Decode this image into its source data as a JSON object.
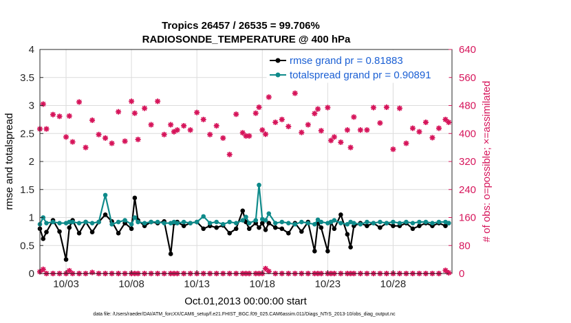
{
  "colors": {
    "rmse": "#000000",
    "spread": "#0e8a8a",
    "obs": "#d6145a",
    "legend_text": "#1a5fd4"
  },
  "chart_data": {
    "type": "line",
    "title": "Tropics 26457 / 26535 = 99.706%",
    "subtitle": "RADIOSONDE_TEMPERATURE @ 400 hPa",
    "xlabel": "Oct.01,2013 00:00:00 start",
    "ylabel": "rmse and totalspread",
    "ylabel_right": "# of obs: o=possible; ×=assimilated",
    "footnote": "data file: /Users/raeder/DAI/ATM_forcXX/CAM6_setup/f.e21.FHIST_BGC.f09_025.CAM6assim.011/Diags_NTrS_2013-10/obs_diag_output.nc",
    "xlim": [
      1.0,
      32.5
    ],
    "ylim": [
      0,
      4
    ],
    "ylim_right": [
      0,
      640
    ],
    "yticks": [
      "0",
      "0.5",
      "1",
      "1.5",
      "2",
      "2.5",
      "3",
      "3.5",
      "4"
    ],
    "yticks_right": [
      "0",
      "80",
      "160",
      "240",
      "320",
      "400",
      "480",
      "560",
      "640"
    ],
    "xticks": [
      {
        "day": 3,
        "label": "10/03"
      },
      {
        "day": 8,
        "label": "10/08"
      },
      {
        "day": 13,
        "label": "10/13"
      },
      {
        "day": 18,
        "label": "10/18"
      },
      {
        "day": 23,
        "label": "10/23"
      },
      {
        "day": 28,
        "label": "10/28"
      }
    ],
    "legend": {
      "placement": "top-right",
      "entries": [
        "rmse grand pr = 0.81883",
        "totalspread grand pr = 0.90891"
      ]
    },
    "x": [
      1.0,
      1.25,
      1.5,
      2.0,
      2.5,
      3.0,
      3.25,
      3.5,
      4.0,
      4.5,
      5.0,
      5.5,
      6.0,
      6.5,
      7.0,
      7.5,
      8.0,
      8.25,
      8.5,
      9.0,
      9.5,
      10.0,
      10.5,
      11.0,
      11.25,
      11.5,
      12.0,
      12.5,
      13.0,
      13.5,
      14.0,
      14.5,
      15.0,
      15.5,
      16.0,
      16.5,
      16.75,
      17.0,
      17.5,
      17.75,
      18.0,
      18.25,
      18.5,
      19.0,
      19.5,
      20.0,
      20.5,
      21.0,
      21.5,
      22.0,
      22.25,
      22.5,
      23.0,
      23.25,
      23.5,
      24.0,
      24.5,
      24.75,
      25.0,
      25.5,
      26.0,
      26.5,
      27.0,
      27.5,
      28.0,
      28.5,
      29.0,
      29.5,
      30.0,
      30.5,
      31.0,
      31.5,
      32.0,
      32.25
    ],
    "series": [
      {
        "name": "rmse",
        "values": [
          0.8,
          0.62,
          0.74,
          0.95,
          0.75,
          0.25,
          0.82,
          0.95,
          0.72,
          0.92,
          0.74,
          0.92,
          1.05,
          0.93,
          0.72,
          0.9,
          0.8,
          1.35,
          0.95,
          0.85,
          0.92,
          0.9,
          0.93,
          0.35,
          0.9,
          0.92,
          0.85,
          0.9,
          0.92,
          0.8,
          0.85,
          0.82,
          0.86,
          0.72,
          0.8,
          1.12,
          0.92,
          0.8,
          0.9,
          0.82,
          0.9,
          0.78,
          0.9,
          0.82,
          0.8,
          0.72,
          0.9,
          0.75,
          0.92,
          0.4,
          0.9,
          0.82,
          0.4,
          0.92,
          0.8,
          1.05,
          0.7,
          0.47,
          0.85,
          0.9,
          0.85,
          0.9,
          0.82,
          0.9,
          0.85,
          0.85,
          0.9,
          0.8,
          0.85,
          0.9,
          0.85,
          0.9,
          0.85,
          0.9
        ]
      },
      {
        "name": "totalspread",
        "values": [
          0.88,
          1.0,
          0.9,
          0.92,
          0.9,
          0.9,
          0.92,
          0.92,
          0.9,
          0.92,
          0.9,
          0.92,
          1.4,
          0.88,
          0.92,
          0.95,
          0.88,
          1.0,
          0.92,
          0.9,
          0.92,
          0.92,
          0.9,
          0.9,
          0.92,
          0.9,
          0.92,
          0.9,
          0.92,
          1.02,
          0.9,
          0.92,
          0.88,
          0.92,
          0.9,
          0.95,
          1.01,
          0.9,
          0.95,
          1.58,
          0.97,
          0.95,
          1.07,
          0.9,
          0.92,
          0.9,
          0.88,
          0.92,
          0.9,
          0.88,
          0.96,
          0.92,
          0.9,
          0.92,
          0.95,
          0.9,
          0.88,
          0.92,
          0.9,
          0.88,
          0.92,
          0.9,
          0.92,
          0.9,
          0.92,
          0.9,
          0.92,
          0.9,
          0.92,
          0.92,
          0.9,
          0.92,
          0.92,
          0.9
        ]
      },
      {
        "name": "obs_possible",
        "axis": "right",
        "values": [
          413,
          484,
          413,
          454,
          449,
          390,
          450,
          376,
          490,
          360,
          438,
          397,
          387,
          372,
          462,
          378,
          492,
          458,
          383,
          472,
          425,
          492,
          397,
          425,
          405,
          410,
          422,
          410,
          460,
          440,
          397,
          422,
          387,
          340,
          455,
          402,
          393,
          393,
          458,
          475,
          410,
          398,
          504,
          432,
          440,
          420,
          515,
          403,
          425,
          457,
          470,
          408,
          474,
          380,
          390,
          375,
          410,
          360,
          447,
          410,
          410,
          474,
          430,
          475,
          355,
          472,
          372,
          415,
          405,
          432,
          388,
          415,
          440,
          432
        ]
      },
      {
        "name": "obs_assimilated",
        "axis": "right",
        "values": [
          411,
          481,
          412,
          452,
          447,
          389,
          448,
          375,
          488,
          359,
          436,
          396,
          385,
          371,
          460,
          377,
          490,
          456,
          381,
          470,
          423,
          490,
          396,
          423,
          404,
          409,
          420,
          409,
          458,
          438,
          396,
          420,
          386,
          339,
          453,
          401,
          392,
          392,
          456,
          473,
          409,
          397,
          502,
          430,
          438,
          418,
          513,
          402,
          423,
          455,
          468,
          407,
          472,
          379,
          389,
          374,
          409,
          359,
          445,
          409,
          409,
          472,
          428,
          473,
          354,
          470,
          371,
          413,
          404,
          430,
          387,
          413,
          438,
          430
        ]
      },
      {
        "name": "obs_low",
        "axis": "right",
        "values": [
          5,
          12,
          0,
          0,
          0,
          0,
          8,
          0,
          0,
          0,
          3,
          0,
          0,
          0,
          0,
          0,
          0,
          0,
          0,
          0,
          0,
          0,
          0,
          0,
          0,
          0,
          0,
          0,
          0,
          0,
          0,
          0,
          0,
          0,
          0,
          0,
          0,
          0,
          0,
          0,
          0,
          14,
          6,
          0,
          0,
          0,
          0,
          0,
          0,
          0,
          0,
          0,
          0,
          0,
          0,
          0,
          0,
          0,
          0,
          0,
          0,
          0,
          0,
          0,
          0,
          0,
          0,
          0,
          0,
          0,
          0,
          0,
          9,
          2
        ]
      }
    ]
  }
}
